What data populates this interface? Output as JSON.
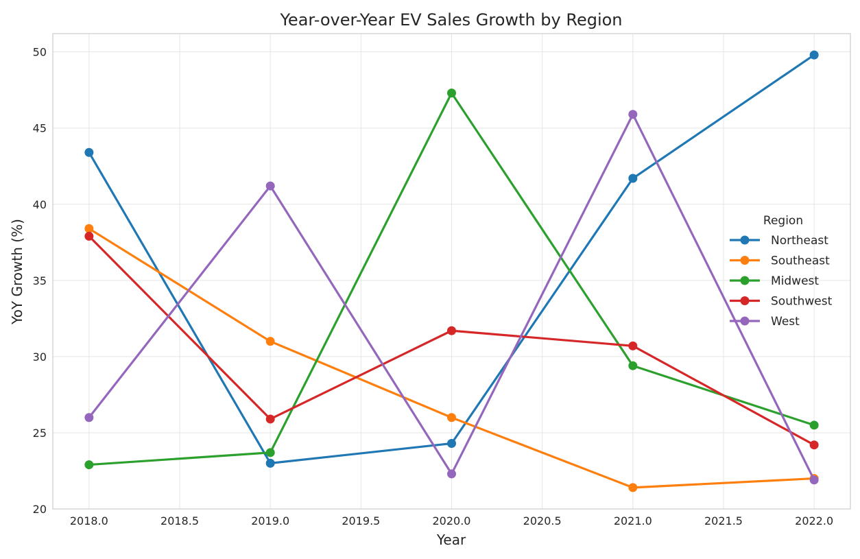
{
  "chart_data": {
    "type": "line",
    "title": "Year-over-Year EV Sales Growth by Region",
    "xlabel": "Year",
    "ylabel": "YoY Growth (%)",
    "x": [
      2018,
      2019,
      2020,
      2021,
      2022
    ],
    "xlim": [
      2017.8,
      2022.2
    ],
    "ylim": [
      20,
      51.2
    ],
    "xticks": [
      2018.0,
      2018.5,
      2019.0,
      2019.5,
      2020.0,
      2020.5,
      2021.0,
      2021.5,
      2022.0
    ],
    "xtick_labels": [
      "2018.0",
      "2018.5",
      "2019.0",
      "2019.5",
      "2020.0",
      "2020.5",
      "2021.0",
      "2021.5",
      "2022.0"
    ],
    "yticks": [
      20,
      25,
      30,
      35,
      40,
      45,
      50
    ],
    "ytick_labels": [
      "20",
      "25",
      "30",
      "35",
      "40",
      "45",
      "50"
    ],
    "grid": true,
    "legend": {
      "title": "Region",
      "placement": "center-right"
    },
    "series": [
      {
        "name": "Northeast",
        "color": "#1f77b4",
        "values": [
          43.4,
          23.0,
          24.3,
          41.7,
          49.8
        ]
      },
      {
        "name": "Southeast",
        "color": "#ff7f0e",
        "values": [
          38.4,
          31.0,
          26.0,
          21.4,
          22.0
        ]
      },
      {
        "name": "Midwest",
        "color": "#2ca02c",
        "values": [
          22.9,
          23.7,
          47.3,
          29.4,
          25.5
        ]
      },
      {
        "name": "Southwest",
        "color": "#d62728",
        "values": [
          37.9,
          25.9,
          31.7,
          30.7,
          24.2
        ]
      },
      {
        "name": "West",
        "color": "#9467bd",
        "values": [
          26.0,
          41.2,
          22.3,
          45.9,
          21.9
        ]
      }
    ]
  }
}
